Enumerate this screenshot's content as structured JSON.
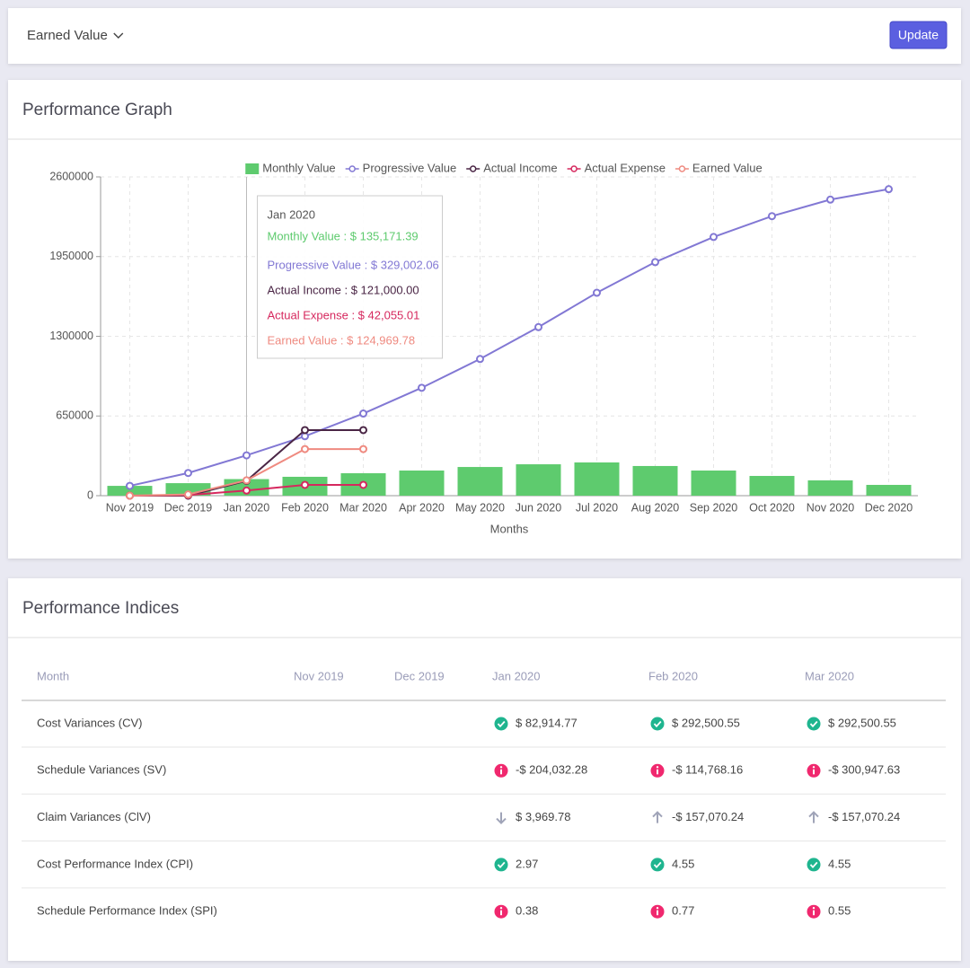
{
  "toolbar": {
    "dropdown": "Earned Value",
    "button": "Update"
  },
  "graph_panel": {
    "title": "Performance Graph"
  },
  "chart_data": {
    "type": "bar",
    "categories": [
      "Nov 2019",
      "Dec 2019",
      "Jan 2020",
      "Feb 2020",
      "Mar 2020",
      "Apr 2020",
      "May 2020",
      "Jun 2020",
      "Jul 2020",
      "Aug 2020",
      "Sep 2020",
      "Oct 2020",
      "Nov 2020",
      "Dec 2020"
    ],
    "series": [
      {
        "name": "Monthly Value",
        "type": "bar",
        "color": "#5ecb6e",
        "values": [
          80000,
          102000,
          135171.39,
          154000,
          183000,
          205000,
          234000,
          256000,
          271000,
          242000,
          205000,
          161000,
          125000,
          88000
        ]
      },
      {
        "name": "Progressive Value",
        "type": "line",
        "color": "#8278d4",
        "values": [
          80000,
          185000,
          329002.06,
          485000,
          670000,
          880000,
          1115000,
          1375000,
          1655000,
          1905000,
          2110000,
          2280000,
          2415000,
          2500000
        ]
      },
      {
        "name": "Actual Income",
        "type": "line",
        "color": "#4a2545",
        "values": [
          0,
          0,
          121000,
          535000,
          535000,
          null,
          null,
          null,
          null,
          null,
          null,
          null,
          null,
          null
        ]
      },
      {
        "name": "Actual Expense",
        "type": "line",
        "color": "#d6285e",
        "values": [
          0,
          5000,
          42055.01,
          88000,
          88000,
          null,
          null,
          null,
          null,
          null,
          null,
          null,
          null,
          null
        ]
      },
      {
        "name": "Earned Value",
        "type": "line",
        "color": "#ef8a80",
        "values": [
          0,
          10000,
          124969.78,
          380000,
          380000,
          null,
          null,
          null,
          null,
          null,
          null,
          null,
          null,
          null
        ]
      }
    ],
    "ylim": [
      0,
      2600000
    ],
    "yticks": [
      0,
      650000,
      1300000,
      1950000,
      2600000
    ],
    "x_label": "Months",
    "grid": true,
    "legend": "top",
    "tooltip": {
      "title": "Jan 2020",
      "items": [
        "Monthly Value : $ 135,171.39",
        "Progressive Value : $ 329,002.06",
        "Actual Income : $ 121,000.00",
        "Actual Expense : $ 42,055.01",
        "Earned Value : $ 124,969.78"
      ]
    }
  },
  "indices_panel": {
    "title": "Performance Indices"
  },
  "table": {
    "header": [
      "Month",
      "Nov 2019",
      "Dec 2019",
      "Jan 2020",
      "Feb 2020",
      "Mar 2020"
    ],
    "rows": [
      {
        "label": "Cost Variances (CV)",
        "cells": [
          {
            "icon": "check",
            "text": "$ 82,914.77"
          },
          {
            "icon": "check",
            "text": "$ 292,500.55"
          },
          {
            "icon": "check",
            "text": "$ 292,500.55"
          }
        ]
      },
      {
        "label": "Schedule Variances (SV)",
        "cells": [
          {
            "icon": "info",
            "text": "-$ 204,032.28"
          },
          {
            "icon": "info",
            "text": "-$ 114,768.16"
          },
          {
            "icon": "info",
            "text": "-$ 300,947.63"
          }
        ]
      },
      {
        "label": "Claim Variances (ClV)",
        "cells": [
          {
            "icon": "down",
            "text": "$ 3,969.78"
          },
          {
            "icon": "up",
            "text": "-$ 157,070.24"
          },
          {
            "icon": "up",
            "text": "-$ 157,070.24"
          }
        ]
      },
      {
        "label": "Cost Performance Index (CPI)",
        "cells": [
          {
            "icon": "check",
            "text": "2.97"
          },
          {
            "icon": "check",
            "text": "4.55"
          },
          {
            "icon": "check",
            "text": "4.55"
          }
        ]
      },
      {
        "label": "Schedule Performance Index (SPI)",
        "cells": [
          {
            "icon": "info",
            "text": "0.38"
          },
          {
            "icon": "info",
            "text": "0.77"
          },
          {
            "icon": "info",
            "text": "0.55"
          }
        ]
      }
    ]
  }
}
